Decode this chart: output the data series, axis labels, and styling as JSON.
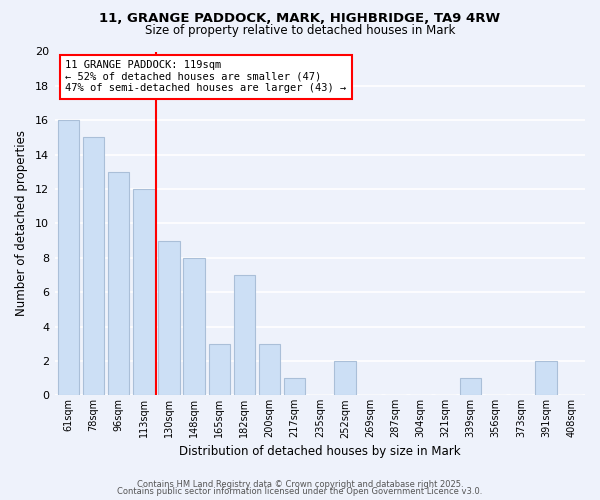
{
  "title_line1": "11, GRANGE PADDOCK, MARK, HIGHBRIDGE, TA9 4RW",
  "title_line2": "Size of property relative to detached houses in Mark",
  "xlabel": "Distribution of detached houses by size in Mark",
  "ylabel": "Number of detached properties",
  "bar_color": "#ccdff5",
  "bar_edge_color": "#aabfd8",
  "background_color": "#eef2fb",
  "grid_color": "#ffffff",
  "categories": [
    "61sqm",
    "78sqm",
    "96sqm",
    "113sqm",
    "130sqm",
    "148sqm",
    "165sqm",
    "182sqm",
    "200sqm",
    "217sqm",
    "235sqm",
    "252sqm",
    "269sqm",
    "287sqm",
    "304sqm",
    "321sqm",
    "339sqm",
    "356sqm",
    "373sqm",
    "391sqm",
    "408sqm"
  ],
  "values": [
    16,
    15,
    13,
    12,
    9,
    8,
    3,
    7,
    3,
    1,
    0,
    2,
    0,
    0,
    0,
    0,
    1,
    0,
    0,
    2,
    0
  ],
  "annotation_line1": "11 GRANGE PADDOCK: 119sqm",
  "annotation_line2": "← 52% of detached houses are smaller (47)",
  "annotation_line3": "47% of semi-detached houses are larger (43) →",
  "property_line_x": 3.5,
  "ylim": [
    0,
    20
  ],
  "yticks": [
    0,
    2,
    4,
    6,
    8,
    10,
    12,
    14,
    16,
    18,
    20
  ],
  "footer_line1": "Contains HM Land Registry data © Crown copyright and database right 2025.",
  "footer_line2": "Contains public sector information licensed under the Open Government Licence v3.0."
}
